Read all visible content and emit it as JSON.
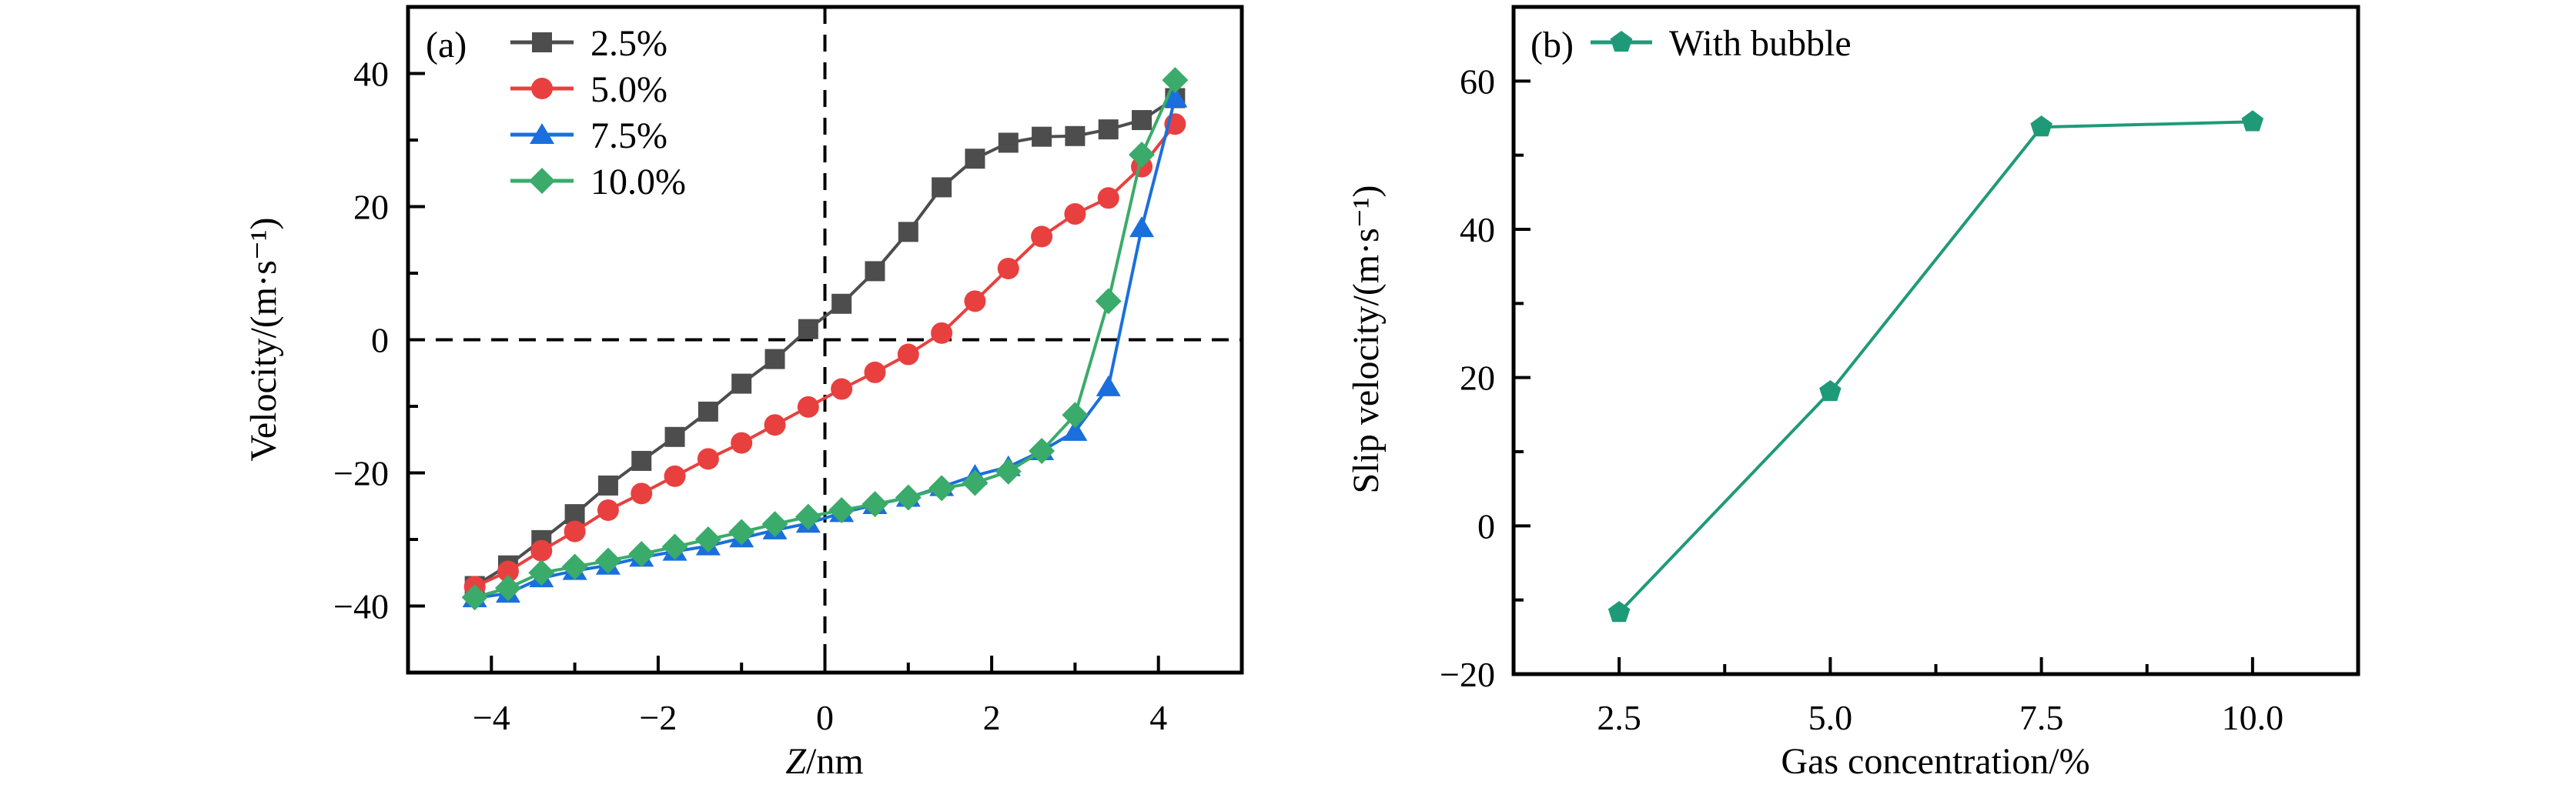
{
  "chart_data": [
    {
      "type": "line",
      "panel_label": "(a)",
      "title": "",
      "xlabel_italic": "Z",
      "xlabel_rest": "/nm",
      "ylabel": "Velocity/(m·s⁻¹)",
      "xlim": [
        -5,
        5
      ],
      "ylim": [
        -50,
        50
      ],
      "xticks": [
        -4,
        -2,
        0,
        2,
        4
      ],
      "xtick_labels": [
        "−4",
        "−2",
        "0",
        "2",
        "4"
      ],
      "xminor": [
        -5,
        -3,
        -1,
        1,
        3,
        5
      ],
      "yticks": [
        -40,
        -20,
        0,
        20,
        40
      ],
      "ytick_labels": [
        "−40",
        "−20",
        "0",
        "20",
        "40"
      ],
      "yminor": [
        -30,
        -10,
        10,
        30
      ],
      "reference_lines": {
        "x": 0,
        "y": 0,
        "style": "dashed"
      },
      "grid": false,
      "legend_position": "top-left",
      "x": [
        -4.2,
        -3.8,
        -3.4,
        -3.0,
        -2.6,
        -2.2,
        -1.8,
        -1.4,
        -1.0,
        -0.6,
        -0.2,
        0.2,
        0.6,
        1.0,
        1.4,
        1.8,
        2.2,
        2.6,
        3.0,
        3.4,
        3.8,
        4.2
      ],
      "series": [
        {
          "name": "2.5%",
          "marker": "square",
          "color": "#4d4d4d",
          "values": [
            -37.0,
            -33.9,
            -30.1,
            -26.2,
            -21.9,
            -18.2,
            -14.6,
            -10.8,
            -6.6,
            -2.9,
            1.6,
            5.4,
            10.3,
            16.2,
            22.9,
            27.2,
            29.6,
            30.5,
            30.6,
            31.6,
            33.0,
            36.3
          ]
        },
        {
          "name": "5.0%",
          "marker": "circle",
          "color": "#e8403f",
          "values": [
            -37.1,
            -34.8,
            -31.7,
            -28.8,
            -25.6,
            -23.1,
            -20.5,
            -17.9,
            -15.5,
            -12.8,
            -10.1,
            -7.4,
            -4.9,
            -2.2,
            1.0,
            5.8,
            10.7,
            15.5,
            18.9,
            21.3,
            26.0,
            32.4
          ]
        },
        {
          "name": "7.5%",
          "marker": "triangle",
          "color": "#1a6fdd",
          "values": [
            -38.8,
            -38.1,
            -35.8,
            -34.7,
            -33.9,
            -32.7,
            -31.8,
            -31.0,
            -29.8,
            -28.6,
            -27.6,
            -26.0,
            -24.8,
            -23.7,
            -22.1,
            -20.4,
            -19.1,
            -16.7,
            -13.8,
            -7.1,
            16.8,
            36.3
          ]
        },
        {
          "name": "10.0%",
          "marker": "diamond",
          "color": "#3aab6a",
          "values": [
            -38.7,
            -37.3,
            -35.0,
            -34.1,
            -33.2,
            -32.2,
            -31.1,
            -30.0,
            -28.9,
            -27.7,
            -26.6,
            -25.6,
            -24.7,
            -23.7,
            -22.3,
            -21.5,
            -19.8,
            -16.7,
            -11.3,
            5.8,
            27.8,
            39.0
          ]
        }
      ]
    },
    {
      "type": "line",
      "panel_label": "(b)",
      "title": "",
      "xlabel": "Gas concentration/%",
      "ylabel": "Slip velocity/(m·s⁻¹)",
      "xlim": [
        1.25,
        11.25
      ],
      "ylim": [
        -20,
        70
      ],
      "xticks": [
        2.5,
        5.0,
        7.5,
        10.0
      ],
      "xtick_labels": [
        "2.5",
        "5.0",
        "7.5",
        "10.0"
      ],
      "xminor": [
        3.75,
        6.25,
        8.75
      ],
      "yticks": [
        -20,
        0,
        20,
        40,
        60
      ],
      "ytick_labels": [
        "−20",
        "0",
        "20",
        "40",
        "60"
      ],
      "yminor": [
        -10,
        10,
        30,
        50
      ],
      "grid": false,
      "legend_position": "top-left",
      "x": [
        2.5,
        5.0,
        7.5,
        10.0
      ],
      "series": [
        {
          "name": "With bubble",
          "marker": "pentagon",
          "color": "#1f9a78",
          "values": [
            -11.7,
            18.1,
            53.8,
            54.5
          ]
        }
      ]
    }
  ]
}
